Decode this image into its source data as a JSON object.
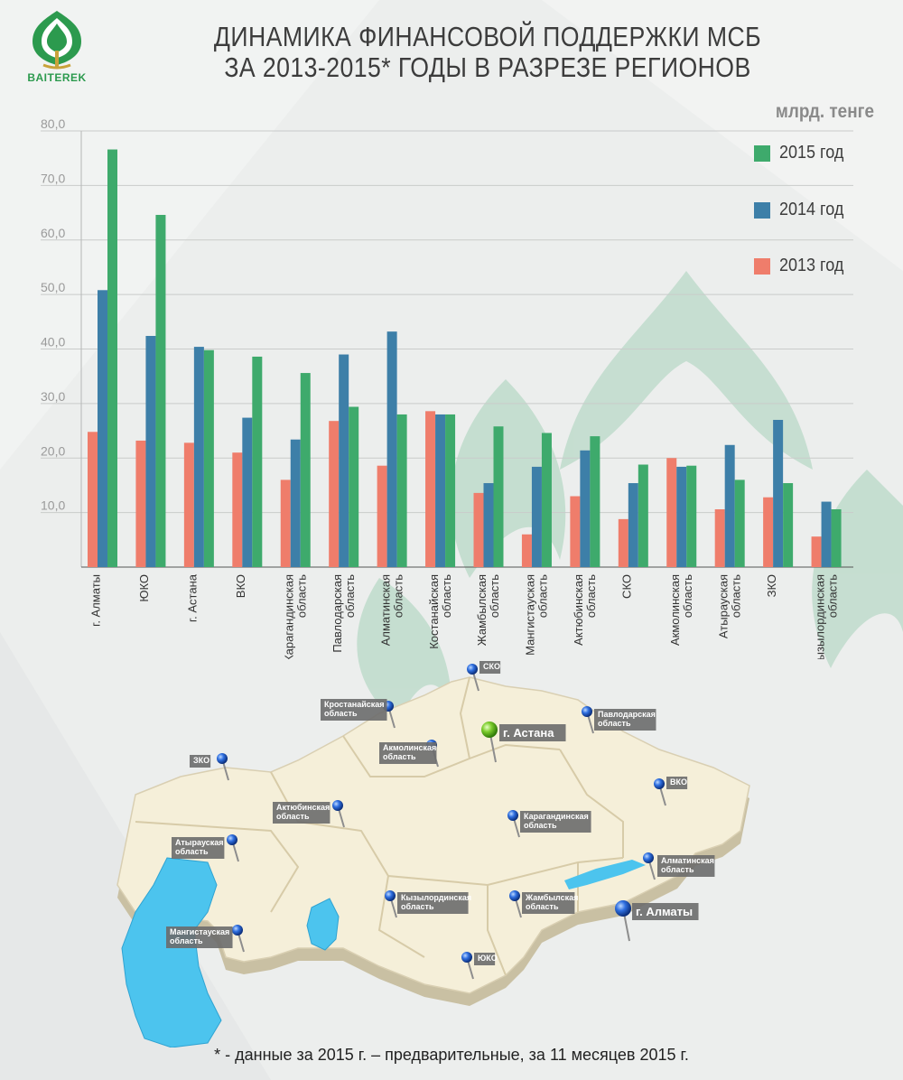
{
  "header": {
    "logo_text": "BAITEREK",
    "title_line1": "ДИНАМИКА ФИНАНСОВОЙ ПОДДЕРЖКИ МСБ",
    "title_line2": "ЗА 2013-2015* ГОДЫ В РАЗРЕЗЕ РЕГИОНОВ"
  },
  "footnote": "* - данные за 2015 г. – предварительные, за 11 месяцев 2015 г.",
  "chart_data": {
    "type": "bar",
    "title": "ДИНАМИКА ФИНАНСОВОЙ ПОДДЕРЖКИ МСБ ЗА 2013-2015* ГОДЫ В РАЗРЕЗЕ РЕГИОНОВ",
    "unit": "млрд. тенге",
    "ylim": [
      0,
      80
    ],
    "yticks": [
      "10,0",
      "20,0",
      "30,0",
      "40,0",
      "50,0",
      "60,0",
      "70,0",
      "80,0"
    ],
    "ytick_values": [
      10,
      20,
      30,
      40,
      50,
      60,
      70,
      80
    ],
    "grid": true,
    "legend_position": "top-right",
    "categories": [
      [
        "г. Алматы"
      ],
      [
        "ЮКО"
      ],
      [
        "г. Астана"
      ],
      [
        "ВКО"
      ],
      [
        "Карагандинская",
        "область"
      ],
      [
        "Павлодарская",
        "область"
      ],
      [
        "Алматинская",
        "область"
      ],
      [
        "Костанайская",
        "область"
      ],
      [
        "Жамбылская",
        "область"
      ],
      [
        "Мангистауская",
        "область"
      ],
      [
        "Актюбинская",
        "область"
      ],
      [
        "СКО"
      ],
      [
        "Акмолинская",
        "область"
      ],
      [
        "Атырауская",
        "область"
      ],
      [
        "ЗКО"
      ],
      [
        "Кызылординская",
        "область"
      ]
    ],
    "series": [
      {
        "name": "2013 год",
        "color": "#ef7d6b",
        "values": [
          24.8,
          23.2,
          22.8,
          21.0,
          16.0,
          26.8,
          18.6,
          28.6,
          13.6,
          6.0,
          13.0,
          8.8,
          20.0,
          10.6,
          12.8,
          5.6
        ]
      },
      {
        "name": "2014 год",
        "color": "#3d7fa8",
        "values": [
          50.8,
          42.4,
          40.4,
          27.4,
          23.4,
          39.0,
          43.2,
          28.0,
          15.4,
          18.4,
          21.4,
          15.4,
          18.4,
          22.4,
          27.0,
          12.0
        ]
      },
      {
        "name": "2015 год",
        "color": "#3eaa6c",
        "values": [
          76.6,
          64.6,
          39.8,
          38.6,
          35.6,
          29.4,
          28.0,
          28.0,
          25.8,
          24.6,
          24.0,
          18.8,
          18.6,
          16.0,
          15.4,
          10.6
        ]
      }
    ]
  },
  "map": {
    "labels": [
      {
        "text": [
          "СКО"
        ]
      },
      {
        "text": [
          "Кростанайская",
          "область"
        ]
      },
      {
        "text": [
          "г. Астана"
        ]
      },
      {
        "text": [
          "Павлодарская",
          "область"
        ]
      },
      {
        "text": [
          "ЗКО"
        ]
      },
      {
        "text": [
          "Акмолинская",
          "область"
        ]
      },
      {
        "text": [
          "ВКО"
        ]
      },
      {
        "text": [
          "Актюбинская",
          "область"
        ]
      },
      {
        "text": [
          "Карагандинская",
          "область"
        ]
      },
      {
        "text": [
          "Атырауская",
          "область"
        ]
      },
      {
        "text": [
          "Алматинская",
          "область"
        ]
      },
      {
        "text": [
          "Кызылординская",
          "область"
        ]
      },
      {
        "text": [
          "Жамбылская",
          "область"
        ]
      },
      {
        "text": [
          "г. Алматы"
        ]
      },
      {
        "text": [
          "Мангистауская",
          "область"
        ]
      },
      {
        "text": [
          "ЮКО"
        ]
      }
    ]
  }
}
